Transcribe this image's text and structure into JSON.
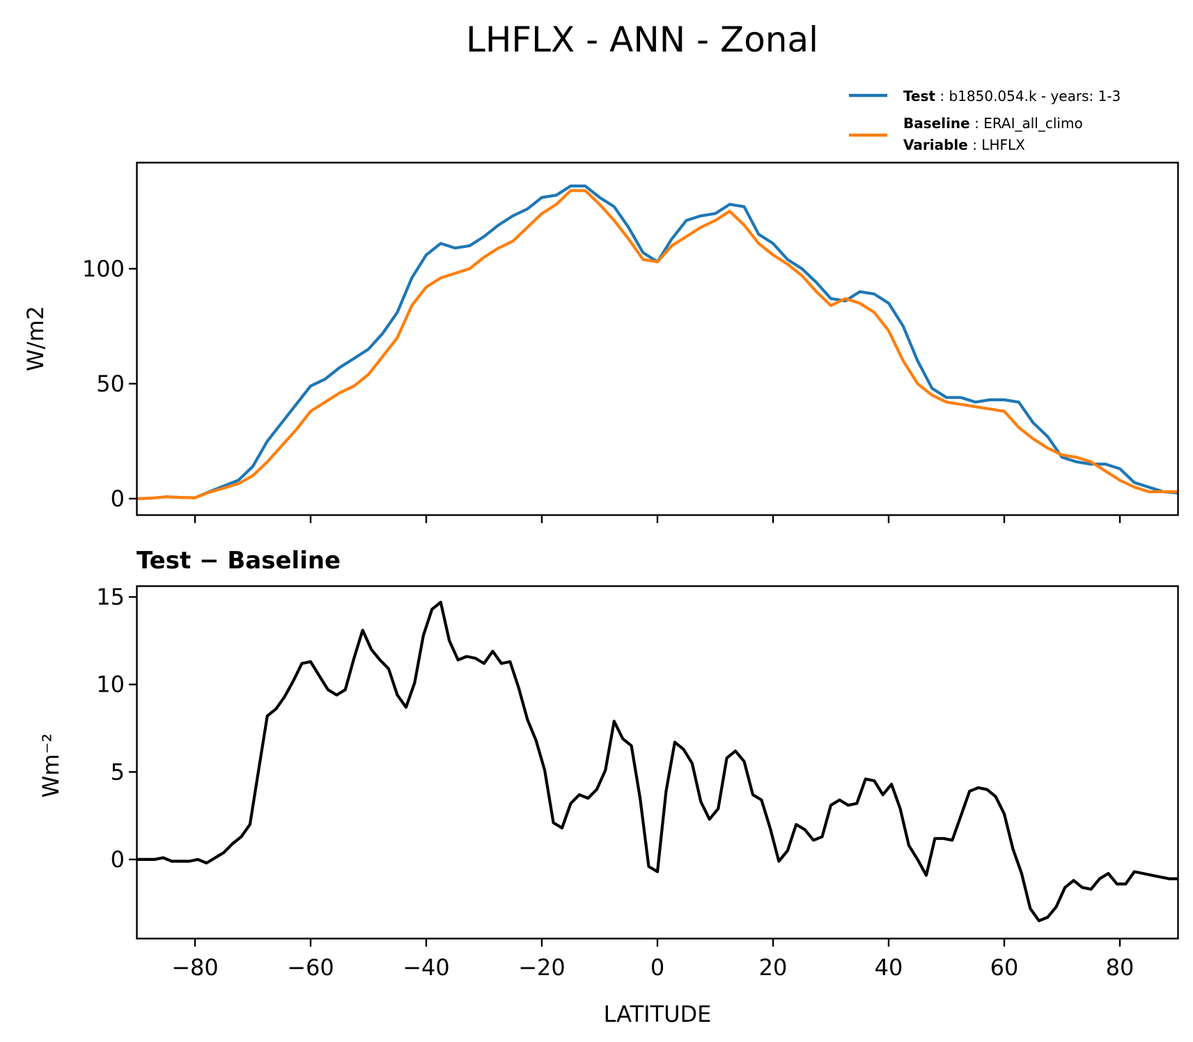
{
  "figure_title": "LHFLX - ANN - Zonal",
  "legend": {
    "test_label": "Test",
    "test_value": "b1850.054.k - years: 1-3",
    "baseline_label": "Baseline",
    "baseline_value": "ERAI_all_climo",
    "variable_label": "Variable",
    "variable_value": "LHFLX"
  },
  "colors": {
    "test": "#1f77b4",
    "baseline": "#ff7f0e",
    "diff": "#000000"
  },
  "chart_data": [
    {
      "type": "line",
      "title": "",
      "xlabel": "",
      "ylabel": "W/m2",
      "xlim": [
        -90,
        90
      ],
      "ylim": [
        -7,
        146
      ],
      "yticks": [
        0,
        50,
        100
      ],
      "ytick_labels": [
        "0",
        "50",
        "100"
      ],
      "xticks": [
        -80,
        -60,
        -40,
        -20,
        0,
        20,
        40,
        60,
        80
      ],
      "x": [
        -90,
        -87.5,
        -85,
        -82.5,
        -80,
        -77.5,
        -75,
        -72.5,
        -70,
        -67.5,
        -65,
        -62.5,
        -60,
        -57.5,
        -55,
        -52.5,
        -50,
        -47.5,
        -45,
        -42.5,
        -40,
        -37.5,
        -35,
        -32.5,
        -30,
        -27.5,
        -25,
        -22.5,
        -20,
        -17.5,
        -15,
        -12.5,
        -10,
        -7.5,
        -5,
        -2.5,
        0,
        2.5,
        5,
        7.5,
        10,
        12.5,
        15,
        17.5,
        20,
        22.5,
        25,
        27.5,
        30,
        32.5,
        35,
        37.5,
        40,
        42.5,
        45,
        47.5,
        50,
        52.5,
        55,
        57.5,
        60,
        62.5,
        65,
        67.5,
        70,
        72.5,
        75,
        77.5,
        80,
        82.5,
        85,
        87.5,
        90
      ],
      "series": [
        {
          "name": "Test",
          "color": "#1f77b4",
          "values": [
            0,
            0.2,
            0.8,
            0.5,
            0.4,
            3,
            5.5,
            8,
            14,
            25,
            33,
            41,
            49,
            52,
            57,
            61,
            65,
            72,
            81,
            96,
            106,
            111,
            109,
            110,
            114,
            119,
            123,
            126,
            131,
            132,
            136,
            136,
            131,
            127,
            118,
            107,
            103,
            113,
            121,
            123,
            124,
            128,
            127,
            115,
            111,
            104,
            100,
            94,
            87,
            86,
            90,
            89,
            85,
            75,
            60,
            48,
            44,
            44,
            42,
            43,
            43,
            42,
            33,
            27,
            18,
            16,
            15,
            15,
            13,
            7,
            5,
            3,
            2.5
          ]
        },
        {
          "name": "Baseline",
          "color": "#ff7f0e",
          "values": [
            0,
            0.2,
            0.8,
            0.5,
            0.4,
            2.8,
            4.6,
            6.5,
            10,
            16,
            23,
            30,
            38,
            42,
            46,
            49,
            54,
            62,
            70,
            84,
            92,
            96,
            98,
            100,
            105,
            109,
            112,
            118,
            124,
            128,
            134,
            134,
            128,
            121,
            113,
            104,
            103,
            110,
            114,
            118,
            121,
            125,
            119,
            111,
            106,
            102,
            97,
            90,
            84,
            87,
            85,
            81,
            73,
            60,
            50,
            45,
            42,
            41,
            40,
            39,
            38,
            31,
            26,
            22,
            19,
            18,
            16,
            12,
            8,
            5,
            3,
            3,
            3
          ]
        }
      ]
    },
    {
      "type": "line",
      "title": "Test − Baseline",
      "xlabel": "LATITUDE",
      "ylabel": "Wm⁻²",
      "xlim": [
        -90,
        90
      ],
      "ylim": [
        -4.5,
        15.6
      ],
      "yticks": [
        0,
        5,
        10,
        15
      ],
      "ytick_labels": [
        "0",
        "5",
        "10",
        "15"
      ],
      "xticks": [
        -80,
        -60,
        -40,
        -20,
        0,
        20,
        40,
        60,
        80
      ],
      "xtick_labels": [
        "−80",
        "−60",
        "−40",
        "−20",
        "0",
        "20",
        "40",
        "60",
        "80"
      ],
      "x": [
        -90,
        -88.5,
        -87,
        -85.5,
        -84,
        -82.5,
        -81,
        -79.5,
        -78,
        -76.5,
        -75,
        -73.5,
        -72,
        -70.5,
        -69,
        -67.5,
        -66,
        -64.5,
        -63,
        -61.5,
        -60,
        -58.5,
        -57,
        -55.5,
        -54,
        -52.5,
        -51,
        -49.5,
        -48,
        -46.5,
        -45,
        -43.5,
        -42,
        -40.5,
        -39,
        -37.5,
        -36,
        -34.5,
        -33,
        -31.5,
        -30,
        -28.5,
        -27,
        -25.5,
        -24,
        -22.5,
        -21,
        -19.5,
        -18,
        -16.5,
        -15,
        -13.5,
        -12,
        -10.5,
        -9,
        -7.5,
        -6,
        -4.5,
        -3,
        -1.5,
        0,
        1.5,
        3,
        4.5,
        6,
        7.5,
        9,
        10.5,
        12,
        13.5,
        15,
        16.5,
        18,
        19.5,
        21,
        22.5,
        24,
        25.5,
        27,
        28.5,
        30,
        31.5,
        33,
        34.5,
        36,
        37.5,
        39,
        40.5,
        42,
        43.5,
        45,
        46.5,
        48,
        49.5,
        51,
        52.5,
        54,
        55.5,
        57,
        58.5,
        60,
        61.5,
        63,
        64.5,
        66,
        67.5,
        69,
        70.5,
        72,
        73.5,
        75,
        76.5,
        78,
        79.5,
        81,
        82.5,
        84,
        85.5,
        87,
        88.5,
        90
      ],
      "series": [
        {
          "name": "Test − Baseline",
          "color": "#000000",
          "values": [
            0,
            0,
            0,
            0.1,
            -0.1,
            -0.1,
            -0.1,
            0,
            -0.2,
            0.1,
            0.4,
            0.9,
            1.3,
            2,
            5.1,
            8.2,
            8.6,
            9.3,
            10.2,
            11.2,
            11.3,
            10.5,
            9.7,
            9.4,
            9.7,
            11.5,
            13.1,
            12,
            11.4,
            10.9,
            9.4,
            8.7,
            10.1,
            12.8,
            14.3,
            14.7,
            12.5,
            11.4,
            11.6,
            11.5,
            11.2,
            11.9,
            11.2,
            11.3,
            9.8,
            8,
            6.8,
            5.1,
            2.1,
            1.8,
            3.2,
            3.7,
            3.5,
            4,
            5.1,
            7.9,
            6.9,
            6.5,
            3.5,
            -0.4,
            -0.7,
            3.9,
            6.7,
            6.3,
            5.5,
            3.3,
            2.3,
            2.9,
            5.8,
            6.2,
            5.6,
            3.7,
            3.4,
            1.8,
            -0.1,
            0.5,
            2,
            1.7,
            1.1,
            1.3,
            3.1,
            3.4,
            3.1,
            3.2,
            4.6,
            4.5,
            3.7,
            4.3,
            2.9,
            0.8,
            0,
            -0.9,
            1.2,
            1.2,
            1.1,
            2.5,
            3.9,
            4.1,
            4,
            3.6,
            2.6,
            0.6,
            -0.8,
            -2.8,
            -3.5,
            -3.3,
            -2.7,
            -1.6,
            -1.2,
            -1.6,
            -1.7,
            -1.1,
            -0.8,
            -1.4,
            -1.4,
            -0.7,
            -0.8,
            -0.9,
            -1,
            -1.1,
            -1.1
          ]
        }
      ]
    }
  ]
}
